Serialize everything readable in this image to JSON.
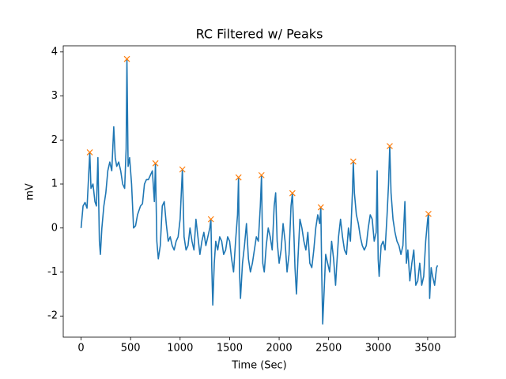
{
  "chart_data": {
    "type": "line",
    "title": "RC Filtered w/ Peaks",
    "x_label": "Time (Sec)",
    "y_label": "mV",
    "xlim": [
      -180,
      3780
    ],
    "ylim": [
      -2.48,
      4.14
    ],
    "xticks": [
      0,
      500,
      1000,
      1500,
      2000,
      2500,
      3000,
      3500
    ],
    "yticks": [
      -2,
      -1,
      0,
      1,
      2,
      3,
      4
    ],
    "series": [
      {
        "type": "line",
        "color": "#1f77b4",
        "x": [
          0,
          20,
          40,
          60,
          88,
          100,
          120,
          140,
          155,
          170,
          185,
          195,
          210,
          230,
          250,
          270,
          290,
          310,
          330,
          345,
          360,
          380,
          400,
          420,
          440,
          455,
          463,
          475,
          490,
          510,
          530,
          550,
          570,
          600,
          620,
          640,
          660,
          680,
          700,
          720,
          740,
          751,
          765,
          780,
          800,
          820,
          840,
          860,
          880,
          900,
          920,
          940,
          960,
          980,
          1000,
          1023,
          1040,
          1060,
          1080,
          1100,
          1120,
          1140,
          1160,
          1180,
          1200,
          1220,
          1240,
          1260,
          1280,
          1300,
          1311,
          1320,
          1330,
          1345,
          1360,
          1380,
          1400,
          1420,
          1440,
          1460,
          1480,
          1500,
          1520,
          1540,
          1560,
          1580,
          1590,
          1600,
          1610,
          1630,
          1650,
          1670,
          1690,
          1710,
          1730,
          1750,
          1770,
          1790,
          1810,
          1822,
          1835,
          1850,
          1870,
          1890,
          1910,
          1930,
          1950,
          1965,
          1980,
          2000,
          2020,
          2040,
          2060,
          2080,
          2100,
          2120,
          2134,
          2150,
          2160,
          2175,
          2190,
          2210,
          2230,
          2250,
          2270,
          2290,
          2310,
          2330,
          2350,
          2370,
          2390,
          2410,
          2421,
          2430,
          2440,
          2455,
          2470,
          2490,
          2510,
          2530,
          2550,
          2570,
          2580,
          2600,
          2620,
          2640,
          2660,
          2680,
          2700,
          2720,
          2740,
          2749,
          2760,
          2780,
          2800,
          2820,
          2840,
          2860,
          2880,
          2900,
          2920,
          2940,
          2960,
          2980,
          2990,
          3000,
          3010,
          3030,
          3050,
          3070,
          3090,
          3105,
          3117,
          3130,
          3150,
          3170,
          3190,
          3210,
          3230,
          3250,
          3270,
          3285,
          3300,
          3320,
          3340,
          3360,
          3380,
          3400,
          3420,
          3440,
          3460,
          3480,
          3500,
          3508,
          3520,
          3535,
          3550,
          3570,
          3590,
          3600
        ],
        "values": [
          0,
          0.5,
          0.58,
          0.45,
          1.72,
          0.9,
          1.0,
          0.6,
          0.5,
          1.6,
          -0.3,
          -0.6,
          0.0,
          0.5,
          0.8,
          1.3,
          1.5,
          1.3,
          2.3,
          1.6,
          1.4,
          1.5,
          1.3,
          1.0,
          0.9,
          1.8,
          3.84,
          1.4,
          1.6,
          1.0,
          0.0,
          0.05,
          0.3,
          0.5,
          0.55,
          1.0,
          1.1,
          1.1,
          1.2,
          1.3,
          0.6,
          1.47,
          -0.3,
          -0.7,
          -0.4,
          0.5,
          0.6,
          0.1,
          -0.3,
          -0.2,
          -0.4,
          -0.5,
          -0.3,
          -0.2,
          0.2,
          1.33,
          -0.2,
          -0.5,
          -0.4,
          0.0,
          -0.3,
          -0.5,
          0.2,
          -0.2,
          -0.6,
          -0.3,
          -0.1,
          -0.4,
          -0.2,
          0.0,
          0.2,
          -0.9,
          -1.75,
          -0.8,
          -0.3,
          -0.5,
          -0.2,
          -0.3,
          -0.6,
          -0.5,
          -0.2,
          -0.3,
          -0.7,
          -1.0,
          -0.3,
          0.3,
          1.15,
          -1.0,
          -1.6,
          -0.8,
          -0.4,
          0.1,
          -0.7,
          -1.0,
          -0.8,
          -0.5,
          -0.2,
          -0.3,
          0.5,
          1.2,
          -0.8,
          -1.0,
          -0.4,
          0.0,
          -0.2,
          -0.5,
          0.5,
          0.8,
          -0.3,
          -0.8,
          -0.5,
          0.1,
          -0.3,
          -1.0,
          -0.6,
          0.5,
          0.79,
          -0.2,
          -0.9,
          -1.5,
          -0.7,
          0.2,
          0.0,
          -0.3,
          -0.5,
          -0.1,
          -0.8,
          -0.9,
          -0.5,
          0.0,
          0.3,
          0.1,
          0.47,
          -1.0,
          -2.18,
          -1.4,
          -0.6,
          -0.8,
          -1.0,
          -0.3,
          -0.7,
          -1.3,
          -0.9,
          -0.2,
          0.2,
          -0.2,
          -0.5,
          -0.6,
          0.0,
          -0.3,
          0.8,
          1.51,
          0.8,
          0.3,
          0.1,
          -0.2,
          -0.4,
          -0.5,
          -0.4,
          0.0,
          0.3,
          0.2,
          -0.3,
          -0.1,
          1.3,
          -0.7,
          -1.1,
          -0.4,
          -0.3,
          -0.5,
          0.3,
          1.0,
          1.86,
          0.8,
          0.2,
          -0.1,
          -0.3,
          -0.4,
          -0.6,
          -0.4,
          0.6,
          -0.8,
          -0.5,
          -1.2,
          -0.8,
          -0.5,
          -1.3,
          -1.2,
          -0.8,
          -1.3,
          -1.1,
          -0.3,
          0.2,
          0.32,
          -1.6,
          -0.9,
          -1.1,
          -1.3,
          -0.9,
          -0.85
        ]
      },
      {
        "type": "scatter",
        "marker": "x",
        "color": "#ff7f0e",
        "x": [
          88,
          463,
          751,
          1023,
          1311,
          1590,
          1822,
          2134,
          2421,
          2749,
          3117,
          3508
        ],
        "values": [
          1.72,
          3.84,
          1.47,
          1.33,
          0.2,
          1.15,
          1.2,
          0.79,
          0.47,
          1.51,
          1.86,
          0.32
        ]
      }
    ]
  }
}
